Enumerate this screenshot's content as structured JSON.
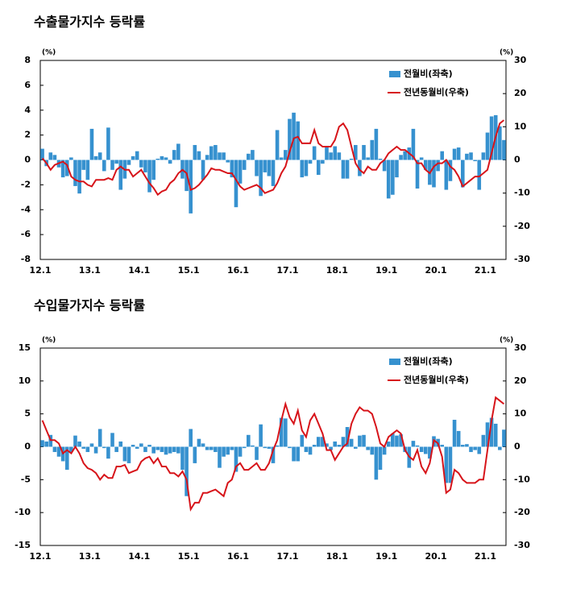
{
  "chart_data": [
    {
      "type": "combo",
      "title": "수출물가지수 등락률",
      "categories": [
        "12.1",
        null,
        null,
        null,
        null,
        null,
        null,
        null,
        null,
        null,
        null,
        null,
        "13.1",
        null,
        null,
        null,
        null,
        null,
        null,
        null,
        null,
        null,
        null,
        null,
        "14.1",
        null,
        null,
        null,
        null,
        null,
        null,
        null,
        null,
        null,
        null,
        null,
        "15.1",
        null,
        null,
        null,
        null,
        null,
        null,
        null,
        null,
        null,
        null,
        null,
        "16.1",
        null,
        null,
        null,
        null,
        null,
        null,
        null,
        null,
        null,
        null,
        null,
        "17.1",
        null,
        null,
        null,
        null,
        null,
        null,
        null,
        null,
        null,
        null,
        null,
        "18.1",
        null,
        null,
        null,
        null,
        null,
        null,
        null,
        null,
        null,
        null,
        null,
        "19.1",
        null,
        null,
        null,
        null,
        null,
        null,
        null,
        null,
        null,
        null,
        null,
        "20.1",
        null,
        null,
        null,
        null,
        null,
        null,
        null,
        null,
        null,
        null,
        null,
        "21.1",
        null,
        null,
        null,
        null
      ],
      "series": [
        {
          "name": "전월비(좌축)",
          "type": "bar",
          "color": "#3691cf",
          "values": [
            0.9,
            -0.5,
            0.6,
            0.4,
            -0.6,
            -1.4,
            -1.3,
            0.2,
            -2.1,
            -2.7,
            -0.8,
            -1.6,
            2.5,
            0.3,
            0.6,
            -0.9,
            2.6,
            -0.8,
            -0.3,
            -2.4,
            -1.5,
            -0.4,
            0.3,
            0.7,
            -0.6,
            -1.0,
            -2.6,
            -1.6,
            0.1,
            0.3,
            0.2,
            -0.3,
            0.8,
            1.3,
            -1.5,
            -2.5,
            -4.3,
            1.2,
            0.7,
            -1.6,
            0.4,
            1.1,
            1.2,
            0.6,
            0.6,
            -0.2,
            -1.4,
            -3.8,
            -1.9,
            -0.8,
            0.5,
            0.8,
            -1.3,
            -2.9,
            -1.0,
            -1.3,
            -2.1,
            2.4,
            0.2,
            0.8,
            3.3,
            3.8,
            3.1,
            -1.4,
            -1.3,
            -0.3,
            1.1,
            -1.2,
            -0.3,
            1.1,
            0.6,
            1.1,
            0.6,
            -1.5,
            -1.5,
            0.1,
            1.2,
            -1.3,
            1.2,
            0.2,
            1.6,
            2.5,
            0.1,
            -0.9,
            -3.1,
            -2.8,
            -1.4,
            0.4,
            0.7,
            1.0,
            2.5,
            -2.3,
            0.2,
            -0.8,
            -2.0,
            -2.2,
            -0.9,
            0.7,
            -2.4,
            -1.7,
            0.9,
            1.0,
            -2.2,
            0.5,
            0.6,
            -0.1,
            -2.4,
            0.6,
            2.2,
            3.5,
            3.6,
            2.7,
            1.6
          ]
        },
        {
          "name": "전년동월비(우축)",
          "type": "line",
          "axis": "y2",
          "color": "#d7141a",
          "values": [
            0.5,
            -1,
            -3,
            -1.5,
            -1,
            -0.5,
            -1.5,
            -5,
            -6,
            -6.5,
            -6.5,
            -7.5,
            -8,
            -6,
            -6,
            -6,
            -5.5,
            -6,
            -3,
            -2,
            -3,
            -3,
            -5,
            -4,
            -3,
            -5,
            -7,
            -8.5,
            -10.5,
            -9.5,
            -9,
            -7,
            -6,
            -4,
            -3,
            -4,
            -9,
            -8.5,
            -7.5,
            -6,
            -4.5,
            -2.5,
            -3,
            -3,
            -3.5,
            -4,
            -4,
            -6,
            -8,
            -9,
            -8.5,
            -8,
            -7.5,
            -8.5,
            -10,
            -9.5,
            -9,
            -7,
            -4,
            -2,
            2.5,
            6.5,
            7,
            5,
            5,
            5,
            9,
            5,
            4,
            4,
            4,
            6,
            10,
            11,
            9,
            4,
            -1,
            -3,
            -4,
            -2,
            -3,
            -3,
            -1,
            0,
            2,
            3,
            4,
            3,
            3,
            2,
            1,
            -1,
            -1,
            -3,
            -4,
            -2,
            -1,
            -1,
            0,
            -2,
            -3,
            -5,
            -8,
            -7,
            -6,
            -5,
            -5,
            -4,
            -3,
            2,
            7,
            11,
            12
          ]
        }
      ],
      "ylim": [
        -8,
        8
      ],
      "yticks": [
        -8,
        -6,
        -4,
        -2,
        0,
        2,
        4,
        6,
        8
      ],
      "y_label": "(%)",
      "y2lim": [
        -30,
        30
      ],
      "y2ticks": [
        -30,
        -20,
        -10,
        0,
        10,
        20,
        30
      ],
      "y2_label": "(%)",
      "legend": "top-right"
    },
    {
      "type": "combo",
      "title": "수입물가지수 등락률",
      "categories": [
        "12.1",
        null,
        null,
        null,
        null,
        null,
        null,
        null,
        null,
        null,
        null,
        null,
        "13.1",
        null,
        null,
        null,
        null,
        null,
        null,
        null,
        null,
        null,
        null,
        null,
        "14.1",
        null,
        null,
        null,
        null,
        null,
        null,
        null,
        null,
        null,
        null,
        null,
        "15.1",
        null,
        null,
        null,
        null,
        null,
        null,
        null,
        null,
        null,
        null,
        null,
        "16.1",
        null,
        null,
        null,
        null,
        null,
        null,
        null,
        null,
        null,
        null,
        null,
        "17.1",
        null,
        null,
        null,
        null,
        null,
        null,
        null,
        null,
        null,
        null,
        null,
        "18.1",
        null,
        null,
        null,
        null,
        null,
        null,
        null,
        null,
        null,
        null,
        null,
        "19.1",
        null,
        null,
        null,
        null,
        null,
        null,
        null,
        null,
        null,
        null,
        null,
        "20.1",
        null,
        null,
        null,
        null,
        null,
        null,
        null,
        null,
        null,
        null,
        null,
        "21.1",
        null,
        null,
        null,
        null
      ],
      "series": [
        {
          "name": "전월비(좌축)",
          "type": "bar",
          "color": "#3691cf",
          "values": [
            1.0,
            0.8,
            1.8,
            -0.8,
            -1.5,
            -2.2,
            -3.5,
            -0.8,
            1.7,
            0.8,
            -0.3,
            -0.8,
            0.5,
            -1.0,
            2.7,
            -0.2,
            -1.8,
            2.1,
            -0.8,
            0.8,
            -2.2,
            -2.5,
            0.3,
            -0.3,
            0.5,
            -0.8,
            0.3,
            -1.0,
            -0.5,
            -0.8,
            -1.2,
            -1.0,
            -0.8,
            -1.0,
            -3.5,
            -7.5,
            2.7,
            -2.5,
            1.2,
            0.5,
            -0.5,
            -0.5,
            -0.8,
            -3.2,
            -1.5,
            -1.2,
            -0.5,
            -3.8,
            -1.5,
            -0.2,
            1.8,
            0.2,
            -2.0,
            3.4,
            -0.2,
            -0.3,
            -2.5,
            0.2,
            4.4,
            4.3,
            -0.2,
            -2.2,
            -2.2,
            1.8,
            -0.8,
            -1.2,
            0.3,
            1.5,
            1.5,
            0.5,
            -0.5,
            0.8,
            0.3,
            1.5,
            3.0,
            1.2,
            -0.3,
            1.7,
            1.8,
            -0.5,
            -1.2,
            -5.0,
            -3.5,
            -1.2,
            0.8,
            2.0,
            1.7,
            1.9,
            -0.8,
            -3.2,
            0.9,
            0.2,
            -0.8,
            -1.1,
            -1.8,
            1.6,
            1.2,
            0.3,
            -5.5,
            -5.5,
            4.1,
            2.4,
            0.3,
            0.4,
            -0.8,
            -0.5,
            -1.1,
            1.8,
            3.7,
            4.4,
            3.5,
            -0.5,
            2.6
          ]
        },
        {
          "name": "전년동월비(우축)",
          "type": "line",
          "axis": "y2",
          "color": "#d7141a",
          "values": [
            8,
            5,
            2,
            2,
            1,
            -2,
            -1,
            -2,
            0,
            -2,
            -5,
            -6.5,
            -7,
            -8,
            -10,
            -8.5,
            -9.5,
            -9.5,
            -6,
            -6,
            -5.5,
            -8,
            -7.5,
            -7,
            -4.5,
            -3.5,
            -3,
            -5,
            -3.5,
            -6,
            -6,
            -8,
            -8,
            -9,
            -7.5,
            -10,
            -19,
            -17,
            -17,
            -14,
            -14,
            -13.5,
            -13,
            -14,
            -15,
            -11,
            -10,
            -6,
            -5,
            -7,
            -7,
            -6,
            -5,
            -7,
            -7,
            -5,
            -1,
            2,
            8,
            13,
            9,
            7,
            11,
            5,
            3,
            8,
            10,
            7,
            4,
            -1,
            -1,
            -4,
            -2,
            0,
            1,
            7,
            10,
            12,
            11,
            11,
            10,
            6,
            1,
            0,
            3,
            4,
            5,
            4,
            -1,
            -3,
            -4,
            -1,
            -6,
            -8,
            -5,
            2,
            1,
            -3,
            -14,
            -13,
            -7,
            -8,
            -10,
            -11,
            -11,
            -11,
            -10,
            -10,
            -1,
            8,
            15,
            14,
            13
          ]
        }
      ],
      "ylim": [
        -15,
        15
      ],
      "yticks": [
        -15,
        -10,
        -5,
        0,
        5,
        10,
        15
      ],
      "y_label": "(%)",
      "y2lim": [
        -30,
        30
      ],
      "y2ticks": [
        -30,
        -20,
        -10,
        0,
        10,
        20,
        30
      ],
      "y2_label": "(%)",
      "legend": "top-right"
    }
  ]
}
